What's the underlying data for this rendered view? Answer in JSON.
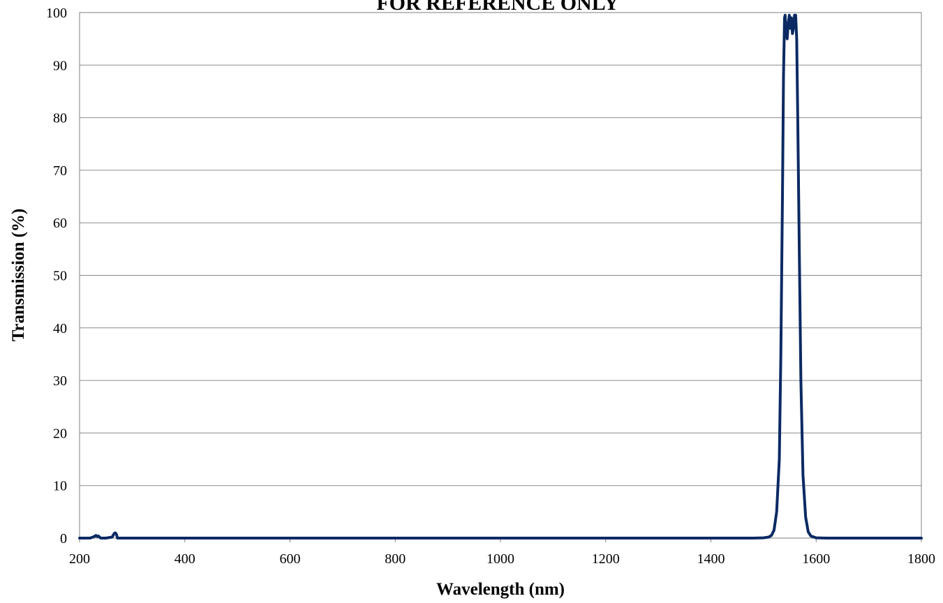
{
  "chart_data": {
    "type": "line",
    "title": "FOR REFERENCE ONLY",
    "xlabel": "Wavelength (nm)",
    "ylabel": "Transmission (%)",
    "xlim": [
      200,
      1800
    ],
    "ylim": [
      0,
      100
    ],
    "xticks": [
      "200",
      "400",
      "600",
      "800",
      "1000",
      "1200",
      "1400",
      "1600",
      "1800"
    ],
    "yticks": [
      "0",
      "10",
      "20",
      "30",
      "40",
      "50",
      "60",
      "70",
      "80",
      "90",
      "100"
    ],
    "grid": "horizontal",
    "legend": "none",
    "line_color": "#0b2a63",
    "series": [
      {
        "x": [
          200,
          220,
          228,
          231,
          234,
          236,
          240,
          250,
          262,
          266,
          268,
          270,
          272,
          280,
          300,
          400,
          600,
          800,
          1000,
          1200,
          1400,
          1480,
          1500,
          1510,
          1515,
          1520,
          1525,
          1530,
          1533,
          1536,
          1538,
          1540,
          1541,
          1543,
          1545,
          1547,
          1549,
          1551,
          1553,
          1555,
          1557,
          1559,
          1561,
          1563,
          1565,
          1568,
          1571,
          1575,
          1580,
          1585,
          1590,
          1600,
          1620,
          1650,
          1700,
          1800
        ],
        "y": [
          0,
          0,
          0.3,
          0.5,
          0.3,
          0.4,
          0,
          0,
          0.2,
          0.9,
          1.0,
          0.7,
          0,
          0,
          0,
          0,
          0,
          0,
          0,
          0,
          0,
          0,
          0.05,
          0.2,
          0.5,
          1.5,
          5,
          15,
          35,
          65,
          88,
          99,
          99.5,
          96,
          95,
          98,
          99.5,
          97,
          99,
          96,
          97,
          99.5,
          99.5,
          95,
          80,
          55,
          30,
          12,
          4,
          1.2,
          0.4,
          0.05,
          0,
          0,
          0,
          0
        ]
      }
    ]
  }
}
